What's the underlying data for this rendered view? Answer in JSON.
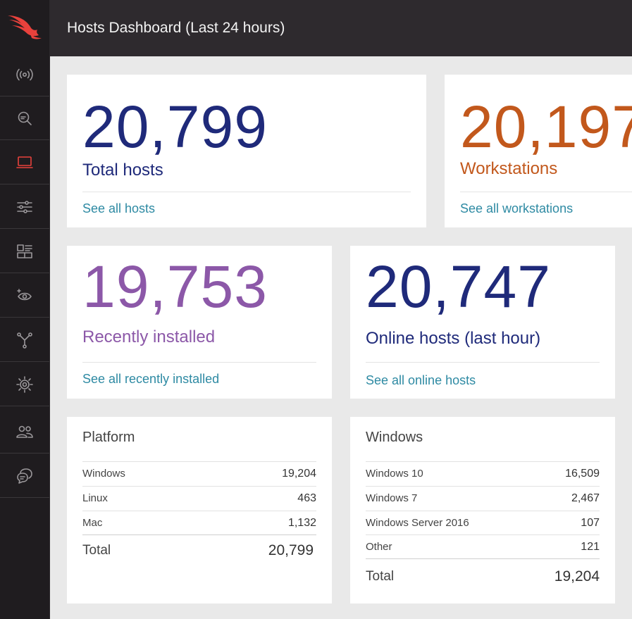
{
  "header": {
    "title": "Hosts Dashboard (Last 24 hours)"
  },
  "sidebar": {
    "logo": "falcon-logo",
    "items": [
      {
        "icon": "activity-signal-icon",
        "active": false
      },
      {
        "icon": "investigate-icon",
        "active": false
      },
      {
        "icon": "hosts-monitor-icon",
        "active": true
      },
      {
        "icon": "configuration-sliders-icon",
        "active": false
      },
      {
        "icon": "dashboards-icon",
        "active": false
      },
      {
        "icon": "spotlight-eye-icon",
        "active": false
      },
      {
        "icon": "network-nodes-icon",
        "active": false
      },
      {
        "icon": "intelligence-target-icon",
        "active": false
      },
      {
        "icon": "users-icon",
        "active": false
      },
      {
        "icon": "support-chat-icon",
        "active": false
      }
    ]
  },
  "colors": {
    "accent_red": "#e8413c",
    "navy": "#1f2a7a",
    "orange": "#c2581c",
    "purple": "#8c58a8",
    "link": "#2e8aa3"
  },
  "stats": {
    "total_hosts": {
      "value": "20,799",
      "label": "Total hosts",
      "link": "See all hosts"
    },
    "workstations": {
      "value": "20,197",
      "label": "Workstations",
      "link": "See all workstations"
    },
    "recently_installed": {
      "value": "19,753",
      "label": "Recently installed",
      "link": "See all recently installed"
    },
    "online_hosts": {
      "value": "20,747",
      "label": "Online hosts (last hour)",
      "link": "See all online hosts"
    }
  },
  "platform": {
    "title": "Platform",
    "rows": [
      {
        "label": "Windows",
        "value": "19,204"
      },
      {
        "label": "Linux",
        "value": "463"
      },
      {
        "label": "Mac",
        "value": "1,132"
      }
    ],
    "total_label": "Total",
    "total_value": "20,799"
  },
  "windows": {
    "title": "Windows",
    "rows": [
      {
        "label": "Windows 10",
        "value": "16,509"
      },
      {
        "label": "Windows 7",
        "value": "2,467"
      },
      {
        "label": "Windows Server 2016",
        "value": "107"
      },
      {
        "label": "Other",
        "value": "121"
      }
    ],
    "total_label": "Total",
    "total_value": "19,204"
  }
}
